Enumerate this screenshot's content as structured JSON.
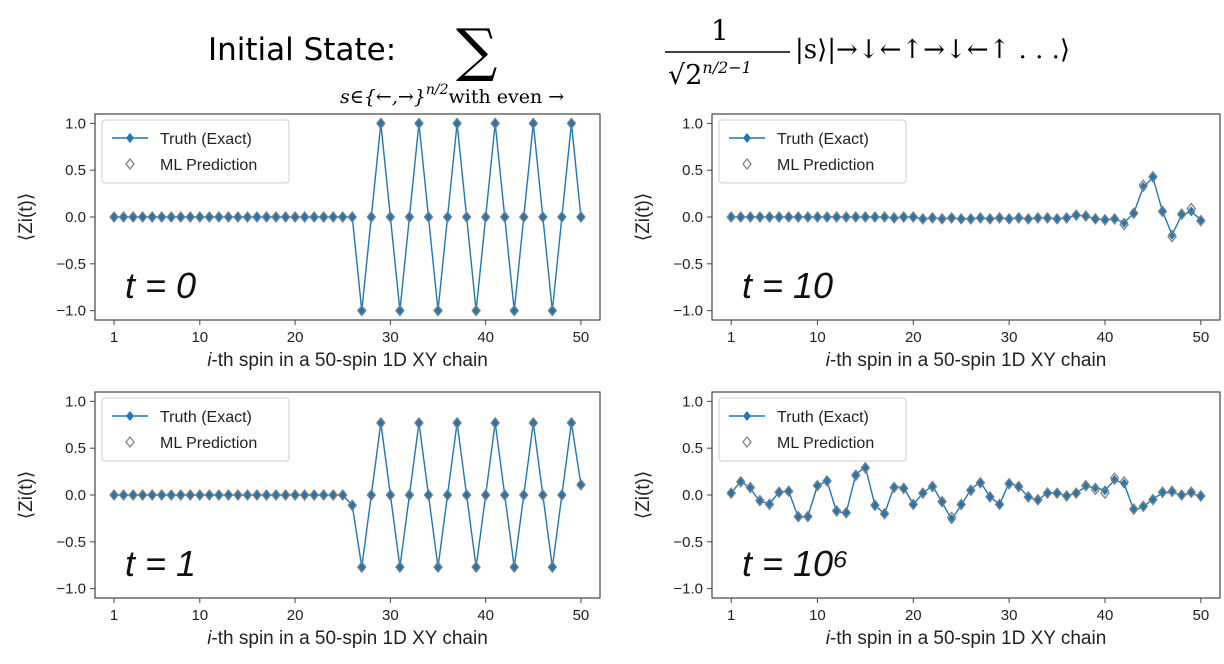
{
  "header": {
    "title_label": "Initial State:",
    "sum_symbol": "∑",
    "sum_subscript": "s∈{←,→}",
    "sum_subscript_power": "n/2",
    "sum_subscript_tail": "with even →",
    "fraction_numerator": "1",
    "fraction_denominator": "√2",
    "fraction_denominator_power": "n/2−1",
    "state_text": "|s⟩|→↓←↑→↓←↑ . . .⟩"
  },
  "chart_data": [
    {
      "type": "line",
      "annotation": "t = 0",
      "xlabel_italic": "i",
      "xlabel": "-th spin in a 50-spin 1D XY chain",
      "ylabel": "⟨Zi(t)⟩",
      "xlim": [
        -1,
        52
      ],
      "ylim": [
        -1.1,
        1.1
      ],
      "xticks": [
        1,
        10,
        20,
        30,
        40,
        50
      ],
      "yticks": [
        -1.0,
        -0.5,
        0.0,
        0.5,
        1.0
      ],
      "ytick_labels": [
        "−1.0",
        "−0.5",
        "0.0",
        "0.5",
        "1.0"
      ],
      "legend": [
        "Truth (Exact)",
        "ML Prediction"
      ],
      "legend_position": "top-left",
      "series": [
        {
          "name": "Truth (Exact)",
          "values": [
            0,
            0,
            0,
            0,
            0,
            0,
            0,
            0,
            0,
            0,
            0,
            0,
            0,
            0,
            0,
            0,
            0,
            0,
            0,
            0,
            0,
            0,
            0,
            0,
            0,
            0,
            -1,
            0,
            1,
            0,
            -1,
            0,
            1,
            0,
            -1,
            0,
            1,
            0,
            -1,
            0,
            1,
            0,
            -1,
            0,
            1,
            0,
            -1,
            0,
            1,
            0
          ]
        },
        {
          "name": "ML Prediction",
          "values": [
            0,
            0,
            0,
            0,
            0,
            0,
            0,
            0,
            0,
            0,
            0,
            0,
            0,
            0,
            0,
            0,
            0,
            0,
            0,
            0,
            0,
            0,
            0,
            0,
            0,
            0,
            -1,
            0,
            1,
            0,
            -1,
            0,
            1,
            0,
            -1,
            0,
            1,
            0,
            -1,
            0,
            1,
            0,
            -1,
            0,
            1,
            0,
            -1,
            0,
            1,
            0
          ]
        }
      ]
    },
    {
      "type": "line",
      "annotation": "t = 10",
      "xlabel_italic": "i",
      "xlabel": "-th spin in a 50-spin 1D XY chain",
      "ylabel": "⟨Zi(t)⟩",
      "xlim": [
        -1,
        52
      ],
      "ylim": [
        -1.1,
        1.1
      ],
      "xticks": [
        1,
        10,
        20,
        30,
        40,
        50
      ],
      "yticks": [
        -1.0,
        -0.5,
        0.0,
        0.5,
        1.0
      ],
      "ytick_labels": [
        "−1.0",
        "−0.5",
        "0.0",
        "0.5",
        "1.0"
      ],
      "legend": [
        "Truth (Exact)",
        "ML Prediction"
      ],
      "legend_position": "top-left",
      "series": [
        {
          "name": "Truth (Exact)",
          "values": [
            0,
            0,
            0,
            0,
            0,
            0,
            0,
            0,
            0,
            0,
            0,
            0,
            0,
            0,
            0,
            0,
            0,
            -0.01,
            0,
            0,
            -0.02,
            -0.01,
            -0.02,
            -0.01,
            -0.02,
            -0.02,
            -0.01,
            -0.02,
            -0.01,
            -0.02,
            -0.01,
            -0.02,
            -0.01,
            -0.01,
            -0.02,
            -0.01,
            0.02,
            0.01,
            -0.02,
            -0.03,
            -0.02,
            -0.06,
            0.04,
            0.32,
            0.42,
            0.06,
            -0.19,
            0.02,
            0.06,
            -0.03
          ]
        },
        {
          "name": "ML Prediction",
          "values": [
            0,
            0,
            0,
            0,
            0,
            0,
            0,
            0,
            0,
            0,
            0,
            0,
            0,
            0,
            0,
            0,
            0,
            -0.01,
            0,
            0,
            -0.02,
            -0.01,
            -0.02,
            -0.01,
            -0.02,
            -0.02,
            -0.01,
            -0.02,
            -0.01,
            -0.02,
            -0.01,
            -0.02,
            -0.01,
            -0.01,
            -0.02,
            -0.01,
            0.02,
            0.01,
            -0.02,
            -0.03,
            -0.02,
            -0.08,
            0.04,
            0.34,
            0.43,
            0.06,
            -0.21,
            0.03,
            0.09,
            -0.04
          ]
        }
      ]
    },
    {
      "type": "line",
      "annotation": "t = 1",
      "xlabel_italic": "i",
      "xlabel": "-th spin in a 50-spin 1D XY chain",
      "ylabel": "⟨Zi(t)⟩",
      "xlim": [
        -1,
        52
      ],
      "ylim": [
        -1.1,
        1.1
      ],
      "xticks": [
        1,
        10,
        20,
        30,
        40,
        50
      ],
      "yticks": [
        -1.0,
        -0.5,
        0.0,
        0.5,
        1.0
      ],
      "ytick_labels": [
        "−1.0",
        "−0.5",
        "0.0",
        "0.5",
        "1.0"
      ],
      "legend": [
        "Truth (Exact)",
        "ML Prediction"
      ],
      "legend_position": "top-left",
      "series": [
        {
          "name": "Truth (Exact)",
          "values": [
            0,
            0,
            0,
            0,
            0,
            0,
            0,
            0,
            0,
            0,
            0,
            0,
            0,
            0,
            0,
            0,
            0,
            0,
            0,
            0,
            0,
            0,
            0,
            0,
            0,
            -0.11,
            -0.77,
            0,
            0.77,
            0,
            -0.77,
            0,
            0.77,
            0,
            -0.77,
            0,
            0.77,
            0,
            -0.77,
            0,
            0.77,
            0,
            -0.77,
            0,
            0.77,
            0,
            -0.77,
            0,
            0.77,
            0.11
          ]
        },
        {
          "name": "ML Prediction",
          "values": [
            0,
            0,
            0,
            0,
            0,
            0,
            0,
            0,
            0,
            0,
            0,
            0,
            0,
            0,
            0,
            0,
            0,
            0,
            0,
            0,
            0,
            0,
            0,
            0,
            0,
            -0.11,
            -0.77,
            0,
            0.77,
            0,
            -0.77,
            0,
            0.77,
            0,
            -0.77,
            0,
            0.77,
            0,
            -0.77,
            0,
            0.77,
            0,
            -0.77,
            0,
            0.77,
            0,
            -0.77,
            0,
            0.77,
            0.11
          ]
        }
      ]
    },
    {
      "type": "line",
      "annotation": "t = 10⁶",
      "xlabel_italic": "i",
      "xlabel": "-th spin in a 50-spin 1D XY chain",
      "ylabel": "⟨Zi(t)⟩",
      "xlim": [
        -1,
        52
      ],
      "ylim": [
        -1.1,
        1.1
      ],
      "xticks": [
        1,
        10,
        20,
        30,
        40,
        50
      ],
      "yticks": [
        -1.0,
        -0.5,
        0.0,
        0.5,
        1.0
      ],
      "ytick_labels": [
        "−1.0",
        "−0.5",
        "0.0",
        "0.5",
        "1.0"
      ],
      "legend": [
        "Truth (Exact)",
        "ML Prediction"
      ],
      "legend_position": "top-left",
      "series": [
        {
          "name": "Truth (Exact)",
          "values": [
            0.02,
            0.15,
            0.07,
            -0.07,
            -0.09,
            0.03,
            0.04,
            -0.24,
            -0.23,
            0.1,
            0.15,
            -0.18,
            -0.19,
            0.22,
            0.3,
            -0.11,
            -0.2,
            0.09,
            0.08,
            -0.1,
            0.02,
            0.1,
            -0.08,
            -0.26,
            -0.11,
            0.06,
            0.14,
            -0.02,
            -0.1,
            0.13,
            0.09,
            -0.02,
            -0.06,
            0.03,
            0.02,
            -0.01,
            0.02,
            0.09,
            0.08,
            0.05,
            0.16,
            0.12,
            -0.16,
            -0.13,
            -0.04,
            0.02,
            0.03,
            0,
            0.02,
            -0.02
          ]
        },
        {
          "name": "ML Prediction",
          "values": [
            0.02,
            0.14,
            0.08,
            -0.06,
            -0.1,
            0.03,
            0.04,
            -0.23,
            -0.23,
            0.1,
            0.15,
            -0.17,
            -0.19,
            0.21,
            0.29,
            -0.11,
            -0.2,
            0.08,
            0.07,
            -0.1,
            0.02,
            0.09,
            -0.07,
            -0.24,
            -0.1,
            0.05,
            0.13,
            -0.02,
            -0.1,
            0.12,
            0.09,
            -0.02,
            -0.05,
            0.02,
            0.02,
            -0.01,
            0.02,
            0.1,
            0.06,
            0.02,
            0.18,
            0.14,
            -0.15,
            -0.12,
            -0.05,
            0.03,
            0.04,
            0,
            0.03,
            -0.01
          ]
        }
      ]
    }
  ],
  "colors": {
    "truth_line": "#1f77b4",
    "truth_marker": "#1f77b4",
    "ml_marker_edge": "#808080",
    "axis": "#444444"
  }
}
